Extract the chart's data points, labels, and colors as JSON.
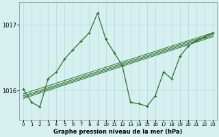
{
  "title": "Graphe pression niveau de la mer (hPa)",
  "bg_color": "#d6f0f0",
  "grid_color": "#b0d8d8",
  "line_color": "#2d6e2d",
  "x_ticks": [
    0,
    1,
    2,
    3,
    4,
    5,
    6,
    7,
    8,
    9,
    10,
    11,
    12,
    13,
    14,
    15,
    16,
    17,
    18,
    19,
    20,
    21,
    22,
    23
  ],
  "y_ticks": [
    1016,
    1017
  ],
  "ylim": [
    1015.55,
    1017.35
  ],
  "xlim": [
    -0.5,
    23.5
  ],
  "main_series": [
    1016.02,
    1015.82,
    1015.75,
    1016.18,
    1016.28,
    1016.48,
    1016.62,
    1016.75,
    1016.88,
    1017.18,
    1016.78,
    1016.58,
    1016.38,
    1015.82,
    1015.8,
    1015.76,
    1015.92,
    1016.28,
    1016.18,
    1016.52,
    1016.68,
    1016.76,
    1016.82,
    1016.88
  ],
  "trend_lines": [
    [
      1015.88,
      1016.82
    ],
    [
      1015.9,
      1016.84
    ],
    [
      1015.92,
      1016.86
    ],
    [
      1015.95,
      1016.88
    ]
  ]
}
